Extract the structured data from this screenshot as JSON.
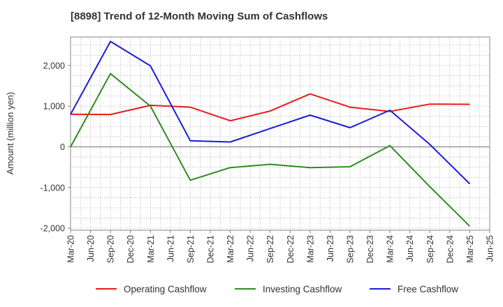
{
  "chart_data": {
    "type": "line",
    "title": "[8898]  Trend of 12-Month Moving Sum of Cashflows",
    "ylabel": "Amount (million yen)",
    "xlabel": "",
    "ylim": [
      -2050,
      2700
    ],
    "yticks": [
      -2000,
      -1000,
      0,
      1000,
      2000
    ],
    "ytick_labels": [
      "-2,000",
      "-1,000",
      "0",
      "1,000",
      "2,000"
    ],
    "x": [
      "Mar-20",
      "Jun-20",
      "Sep-20",
      "Dec-20",
      "Mar-21",
      "Jun-21",
      "Sep-21",
      "Dec-21",
      "Mar-22",
      "Jun-22",
      "Sep-22",
      "Dec-22",
      "Mar-23",
      "Jun-23",
      "Sep-23",
      "Dec-23",
      "Mar-24",
      "Jun-24",
      "Sep-24",
      "Dec-24",
      "Mar-25",
      "Jun-25"
    ],
    "grid": true,
    "legend_position": "bottom",
    "series": [
      {
        "name": "Operating Cashflow",
        "color": "#e8191b",
        "points": [
          [
            "Mar-20",
            800
          ],
          [
            "Sep-20",
            795
          ],
          [
            "Mar-21",
            1020
          ],
          [
            "Sep-21",
            975
          ],
          [
            "Mar-22",
            640
          ],
          [
            "Sep-22",
            880
          ],
          [
            "Mar-23",
            1300
          ],
          [
            "Sep-23",
            975
          ],
          [
            "Mar-24",
            870
          ],
          [
            "Sep-24",
            1050
          ],
          [
            "Mar-25",
            1045
          ]
        ]
      },
      {
        "name": "Investing Cashflow",
        "color": "#2e8b22",
        "points": [
          [
            "Mar-20",
            0
          ],
          [
            "Sep-20",
            1800
          ],
          [
            "Mar-21",
            1000
          ],
          [
            "Sep-21",
            -820
          ],
          [
            "Mar-22",
            -510
          ],
          [
            "Sep-22",
            -430
          ],
          [
            "Mar-23",
            -510
          ],
          [
            "Sep-23",
            -490
          ],
          [
            "Mar-24",
            30
          ],
          [
            "Sep-24",
            -980
          ],
          [
            "Mar-25",
            -1950
          ]
        ]
      },
      {
        "name": "Free Cashflow",
        "color": "#1c1cd6",
        "points": [
          [
            "Mar-20",
            800
          ],
          [
            "Sep-20",
            2590
          ],
          [
            "Mar-21",
            1990
          ],
          [
            "Sep-21",
            150
          ],
          [
            "Mar-22",
            120
          ],
          [
            "Sep-22",
            450
          ],
          [
            "Mar-23",
            780
          ],
          [
            "Sep-23",
            470
          ],
          [
            "Mar-24",
            900
          ],
          [
            "Sep-24",
            60
          ],
          [
            "Mar-25",
            -910
          ]
        ]
      }
    ]
  }
}
